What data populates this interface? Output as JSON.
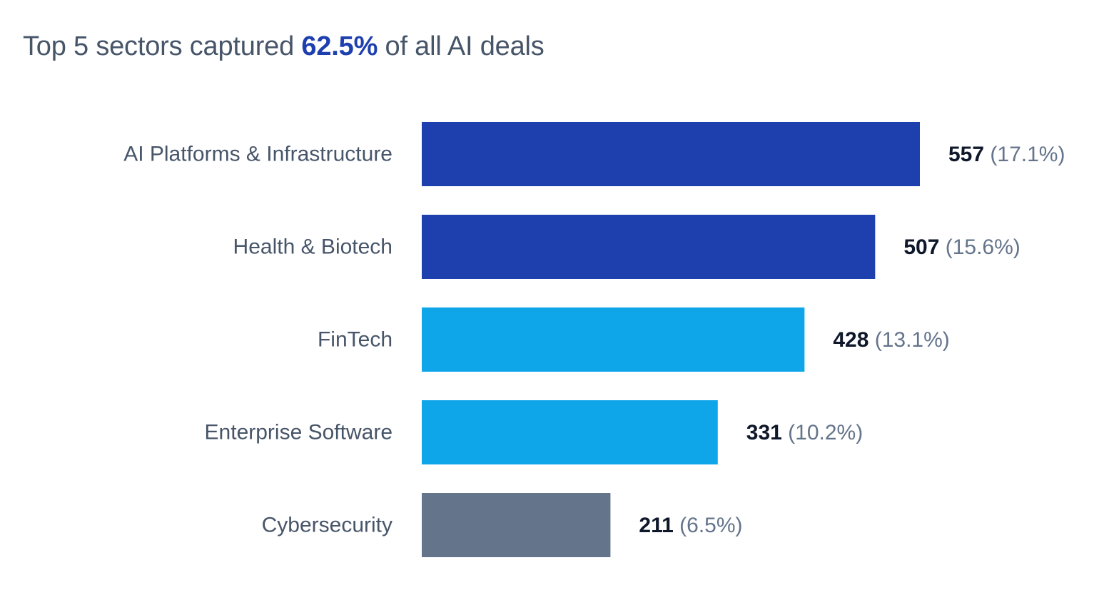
{
  "headline": {
    "prefix": "Top 5 sectors captured ",
    "highlight": "62.5%",
    "suffix": " of all AI deals"
  },
  "chart_data": {
    "type": "bar",
    "orientation": "horizontal",
    "title": "Top 5 sectors captured 62.5% of all AI deals",
    "categories": [
      "AI Platforms & Infrastructure",
      "Health & Biotech",
      "FinTech",
      "Enterprise Software",
      "Cybersecurity"
    ],
    "values": [
      557,
      507,
      428,
      331,
      211
    ],
    "percent_labels": [
      "(17.1%)",
      "(15.6%)",
      "(13.1%)",
      "(10.2%)",
      "(6.5%)"
    ],
    "bar_colors": [
      "#1e40af",
      "#1e40af",
      "#0ea5e9",
      "#0ea5e9",
      "#64748b"
    ],
    "xlim": [
      0,
      557
    ],
    "grid": false,
    "legend": "none"
  }
}
